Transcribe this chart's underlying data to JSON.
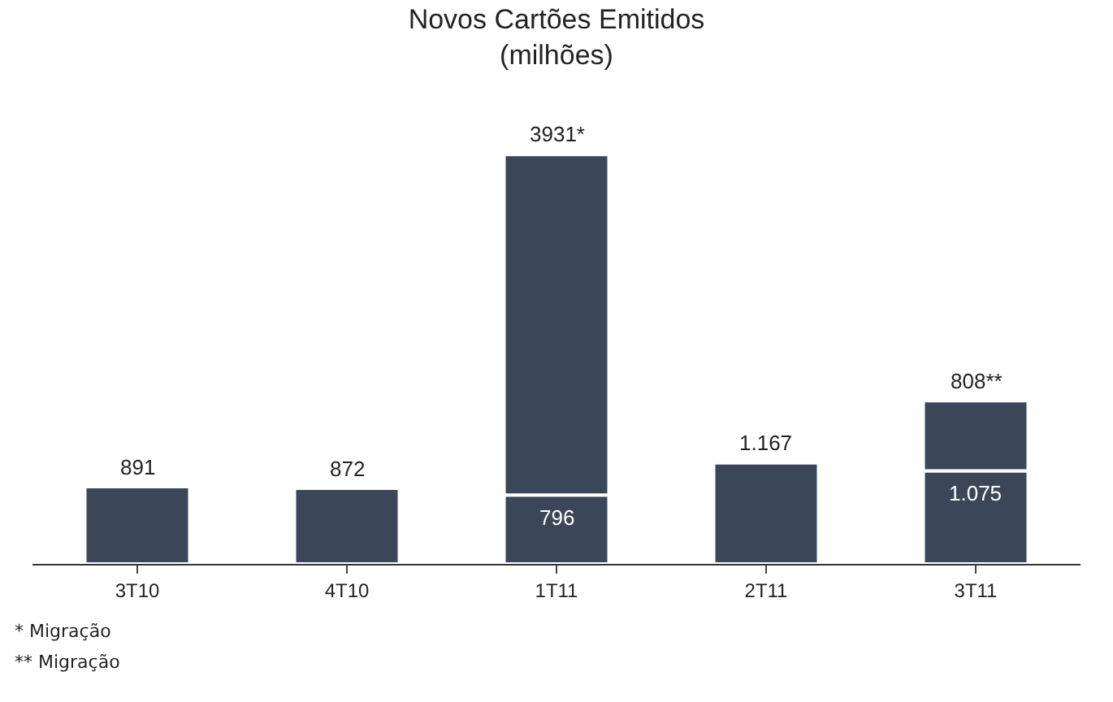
{
  "chart_data": {
    "type": "bar",
    "title": "Novos Cartões Emitidos",
    "subtitle": "(milhões)",
    "categories": [
      "3T10",
      "4T10",
      "1T11",
      "2T11",
      "3T11"
    ],
    "stacked": true,
    "series": [
      {
        "color": "#3b4759",
        "values": [
          891,
          872,
          796,
          1167,
          1075
        ],
        "value_labels": [
          "891",
          "872",
          "796",
          "1.167",
          "1.075"
        ]
      },
      {
        "color": "#3b4759",
        "values": [
          null,
          null,
          3931,
          null,
          808
        ],
        "value_labels": [
          null,
          null,
          "3931*",
          null,
          "808**"
        ]
      }
    ],
    "annotations": [
      "* Migração",
      "** Migração"
    ]
  }
}
